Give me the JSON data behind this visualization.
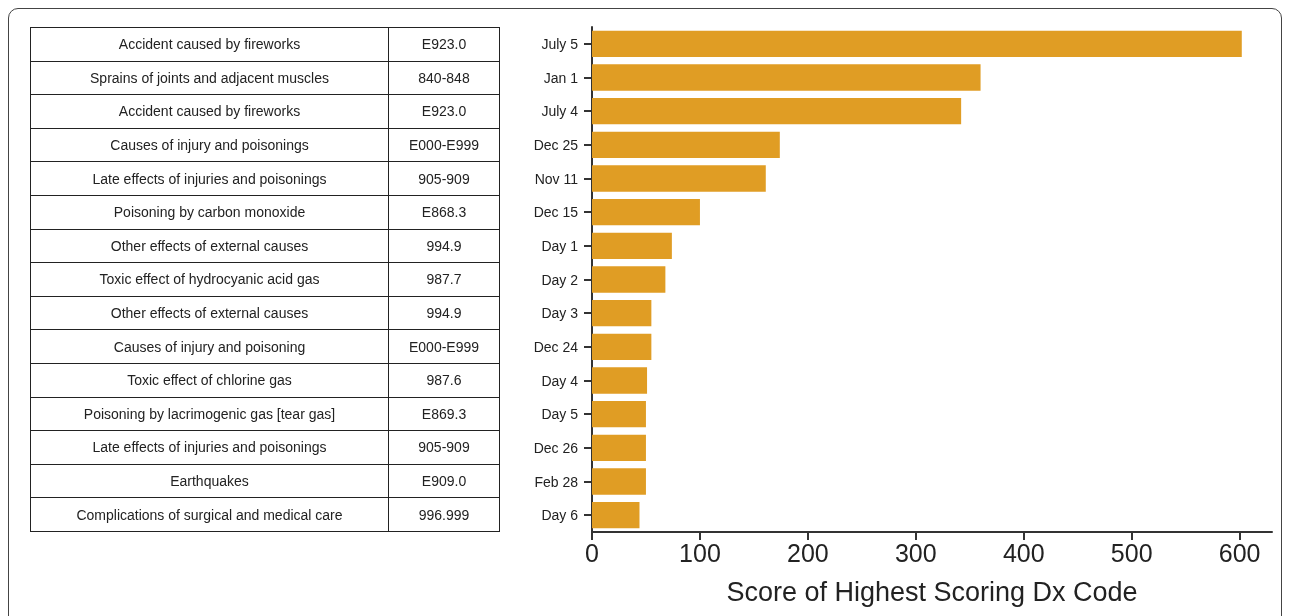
{
  "chart_data": [
    {
      "type": "other",
      "annotations": [
        "Accident caused by fireworks",
        "E923.0",
        "Sprains of joints and adjacent muscles",
        "840-848",
        "Accident caused by fireworks",
        "E923.0",
        "Causes of injury and poisonings",
        "E000-E999",
        "Late effects of injuries and poisonings",
        "905-909",
        "Poisoning by carbon monoxide",
        "E868.3",
        "Other effects of external causes",
        "994.9",
        "Toxic effect of hydrocyanic acid gas",
        "987.7",
        "Other effects of external causes",
        "994.9",
        "Causes of injury and poisoning",
        "E000-E999",
        "Toxic effect of chlorine gas",
        "987.6",
        "Poisoning by lacrimogenic gas [tear gas]",
        "E869.3",
        "Late effects of injuries and poisonings",
        "905-909",
        "Earthquakes",
        "E909.0",
        "Complications of surgical and medical care",
        "996.999"
      ]
    },
    {
      "type": "bar",
      "orientation": "horizontal",
      "xlabel": "Score of Highest Scoring Dx Code",
      "color": "#e09d24",
      "categories": [
        "July 5",
        "Jan 1",
        "July 4",
        "Dec 25",
        "Nov 11",
        "Dec 15",
        "Day 1",
        "Day 2",
        "Day 3",
        "Dec 24",
        "Day 4",
        "Day 5",
        "Dec 26",
        "Feb 28",
        "Day 6"
      ],
      "values": [
        602,
        360,
        342,
        174,
        161,
        100,
        74,
        68,
        55,
        55,
        51,
        50,
        50,
        50,
        44
      ],
      "xlim": [
        0,
        630
      ],
      "xticks": [
        0,
        100,
        200,
        300,
        400,
        500,
        600
      ],
      "grid": false
    }
  ]
}
